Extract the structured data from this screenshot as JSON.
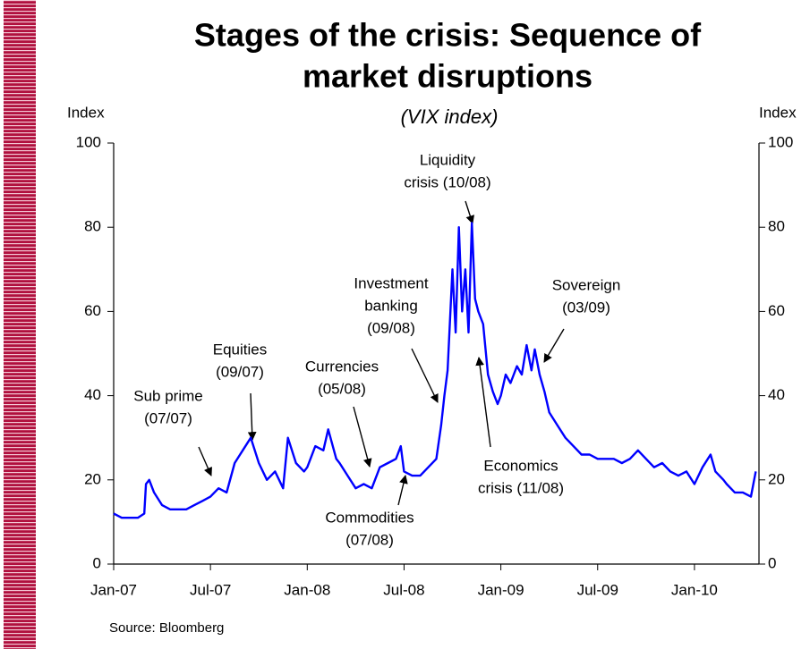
{
  "chart_data": {
    "type": "line",
    "title": [
      "Stages of the crisis: Sequence of",
      "market disruptions"
    ],
    "subtitle": "(VIX index)",
    "y_label": "Index",
    "y2_label": "Index",
    "source": "Source:  Bloomberg",
    "color": "#0000ff",
    "xlim": [
      0,
      40
    ],
    "xticks": [
      {
        "value": 0,
        "label": "Jan-07"
      },
      {
        "value": 6,
        "label": "Jul-07"
      },
      {
        "value": 12,
        "label": "Jan-08"
      },
      {
        "value": 18,
        "label": "Jul-08"
      },
      {
        "value": 24,
        "label": "Jan-09"
      },
      {
        "value": 30,
        "label": "Jul-09"
      },
      {
        "value": 36,
        "label": "Jan-10"
      }
    ],
    "ylim": [
      0,
      100
    ],
    "yticks": [
      0,
      20,
      40,
      60,
      80,
      100
    ],
    "y2lim": [
      0,
      100
    ],
    "y2ticks": [
      0,
      20,
      40,
      60,
      80,
      100
    ],
    "x": [
      0,
      0.5,
      1,
      1.5,
      1.9,
      2.0,
      2.2,
      2.5,
      3,
      3.5,
      4,
      4.5,
      5,
      5.5,
      6,
      6.5,
      7,
      7.5,
      8,
      8.5,
      9,
      9.5,
      10,
      10.5,
      10.8,
      11.3,
      11.8,
      12,
      12.5,
      13,
      13.3,
      13.8,
      14,
      14.5,
      15,
      15.5,
      16,
      16.5,
      17,
      17.5,
      17.8,
      18,
      18.5,
      19,
      19.5,
      20,
      20.3,
      20.5,
      20.7,
      21.0,
      21.2,
      21.4,
      21.6,
      21.8,
      22.0,
      22.2,
      22.4,
      22.6,
      22.9,
      23.2,
      23.5,
      23.8,
      24,
      24.3,
      24.6,
      25,
      25.3,
      25.6,
      25.9,
      26.1,
      26.4,
      26.7,
      27,
      27.5,
      28,
      28.5,
      29,
      29.5,
      30,
      30.5,
      31,
      31.5,
      32,
      32.5,
      33,
      33.5,
      34,
      34.5,
      35,
      35.5,
      36,
      36.5,
      37,
      37.3,
      37.8,
      38,
      38.5,
      39,
      39.5,
      39.8
    ],
    "values": [
      12,
      11,
      11,
      11,
      12,
      19,
      20,
      17,
      14,
      13,
      13,
      13,
      14,
      15,
      16,
      18,
      17,
      24,
      27,
      30,
      24,
      20,
      22,
      18,
      30,
      24,
      22,
      23,
      28,
      27,
      32,
      25,
      24,
      21,
      18,
      19,
      18,
      23,
      24,
      25,
      28,
      22,
      21,
      21,
      23,
      25,
      33,
      40,
      46,
      70,
      55,
      80,
      60,
      70,
      55,
      81,
      63,
      60,
      57,
      45,
      41,
      38,
      40,
      45,
      43,
      47,
      45,
      52,
      46,
      51,
      45,
      41,
      36,
      33,
      30,
      28,
      26,
      26,
      25,
      25,
      25,
      24,
      25,
      27,
      25,
      23,
      24,
      22,
      21,
      22,
      19,
      23,
      26,
      22,
      20,
      19,
      17,
      17,
      16,
      22
    ],
    "annotations": [
      {
        "lines": [
          "Sub prime",
          "(07/07)"
        ]
      },
      {
        "lines": [
          "Equities",
          "(09/07)"
        ]
      },
      {
        "lines": [
          "Currencies",
          "(05/08)"
        ]
      },
      {
        "lines": [
          "Commodities",
          "(07/08)"
        ]
      },
      {
        "lines": [
          "Investment",
          "banking",
          "(09/08)"
        ]
      },
      {
        "lines": [
          "Liquidity",
          "crisis (10/08)"
        ]
      },
      {
        "lines": [
          "Economics",
          "crisis (11/08)"
        ]
      },
      {
        "lines": [
          "Sovereign",
          "(03/09)"
        ]
      }
    ]
  }
}
